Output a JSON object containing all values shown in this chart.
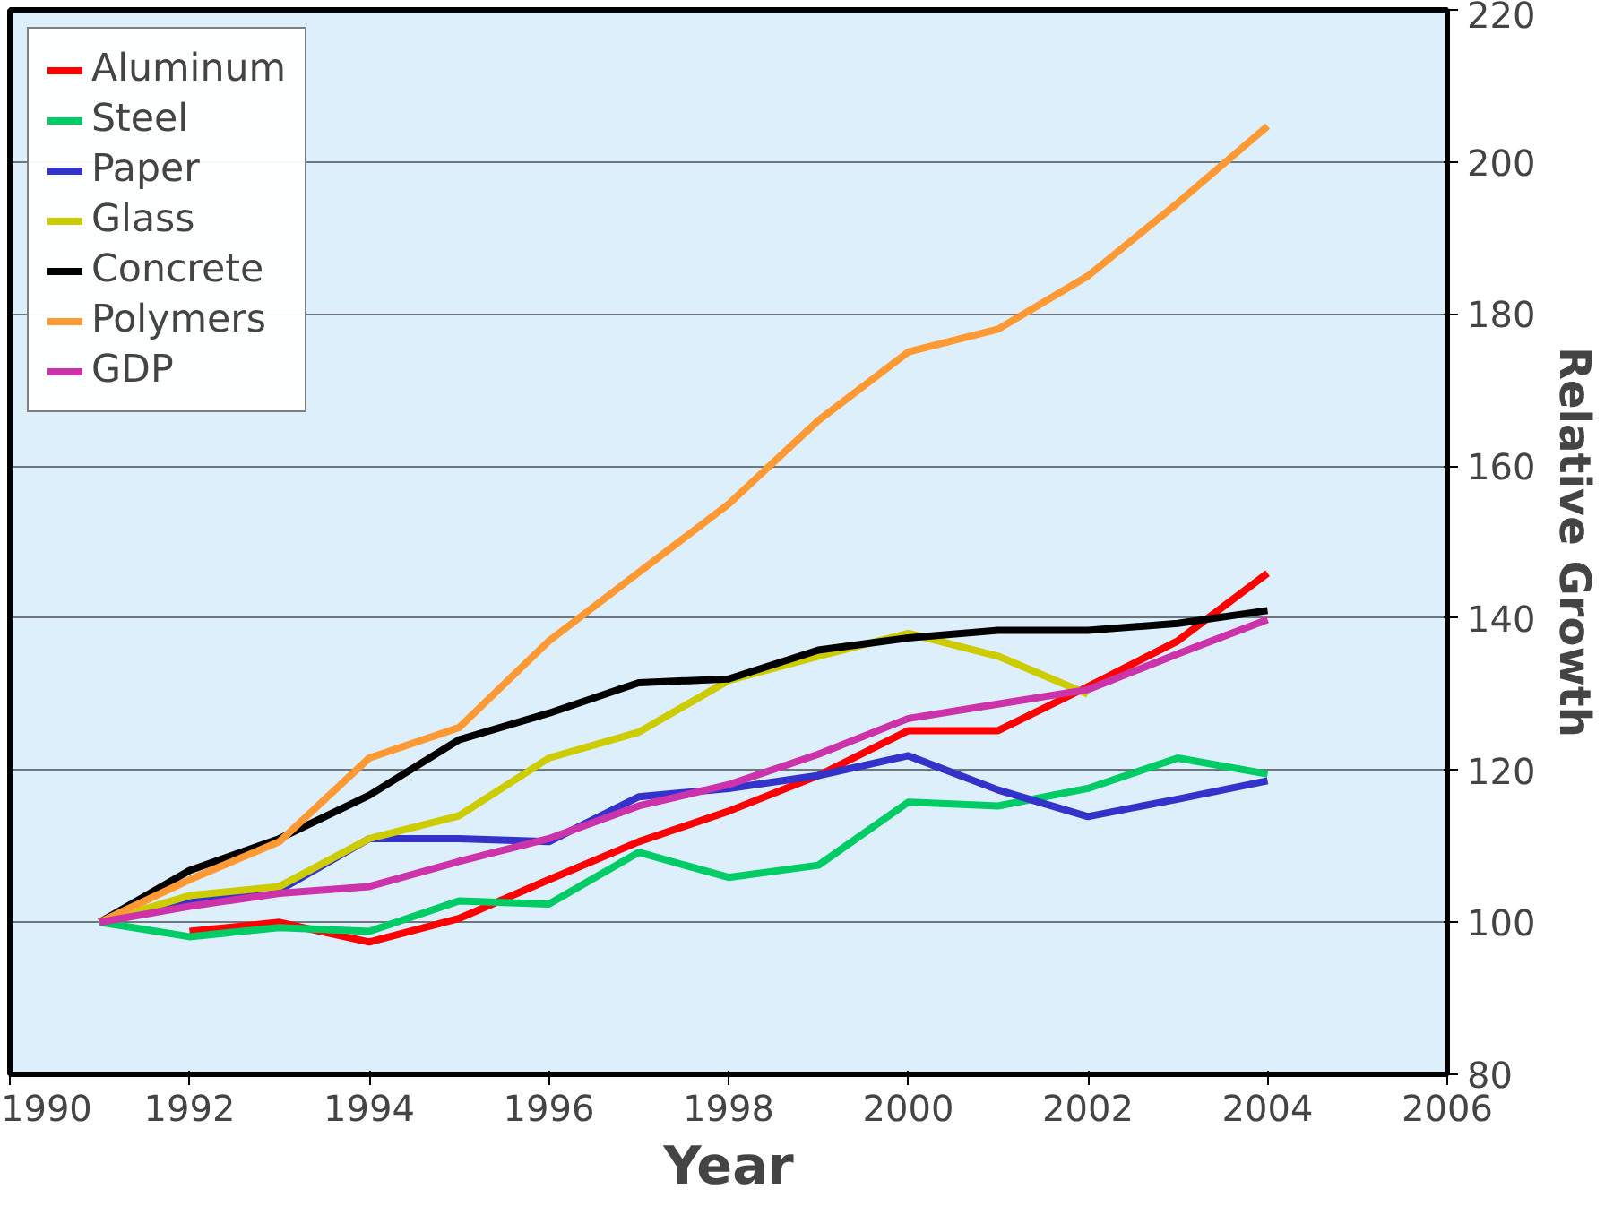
{
  "chart_data": {
    "type": "line",
    "xlabel": "Year",
    "ylabel": "Relative Growth",
    "x": [
      1991,
      1992,
      1993,
      1994,
      1995,
      1996,
      1997,
      1998,
      1999,
      2000,
      2001,
      2002,
      2003,
      2004
    ],
    "xlim": [
      1990,
      2006
    ],
    "xticks": [
      1990,
      1992,
      1994,
      1996,
      1998,
      2000,
      2002,
      2004,
      2006
    ],
    "ylim": [
      80,
      220
    ],
    "yticks": [
      80,
      100,
      120,
      140,
      160,
      180,
      200,
      220
    ],
    "grid": "y",
    "legend": "top left",
    "line_style": "solid",
    "marker": "none",
    "series": [
      {
        "name": "Aluminum",
        "color": "#ff0000",
        "values": [
          null,
          98.8,
          100,
          97.4,
          100.5,
          105.6,
          110.6,
          114.6,
          119.3,
          125.2,
          125.2,
          131,
          137,
          145.9
        ]
      },
      {
        "name": "Steel",
        "color": "#00cc66",
        "values": [
          100,
          98.1,
          99.3,
          98.8,
          102.8,
          102.4,
          109.2,
          105.9,
          107.5,
          115.8,
          115.3,
          117.6,
          121.6,
          119.5
        ]
      },
      {
        "name": "Paper",
        "color": "#3333cc",
        "values": [
          100,
          102.8,
          104.2,
          111,
          111,
          110.6,
          116.5,
          117.6,
          119.3,
          121.9,
          117.4,
          113.9,
          116.2,
          118.6
        ]
      },
      {
        "name": "Glass",
        "color": "#cccc00",
        "values": [
          100,
          103.5,
          104.7,
          111,
          114,
          121.6,
          125,
          131.8,
          135,
          138,
          135,
          130,
          null,
          null
        ]
      },
      {
        "name": "Concrete",
        "color": "#000000",
        "values": [
          100,
          106.8,
          111,
          116.7,
          124,
          127.5,
          131.5,
          132,
          135.8,
          137.4,
          138.4,
          138.4,
          139.3,
          141
        ]
      },
      {
        "name": "Polymers",
        "color": "#ff9933",
        "values": [
          100,
          105.6,
          110.6,
          121.6,
          125.6,
          137,
          146,
          155,
          166,
          175,
          178,
          185,
          194.6,
          204.7
        ]
      },
      {
        "name": "GDP",
        "color": "#cc33aa",
        "values": [
          100,
          102.1,
          103.8,
          104.7,
          108,
          111,
          115.3,
          118.1,
          122.1,
          126.8,
          128.7,
          130.6,
          135.3,
          139.8
        ]
      }
    ]
  }
}
